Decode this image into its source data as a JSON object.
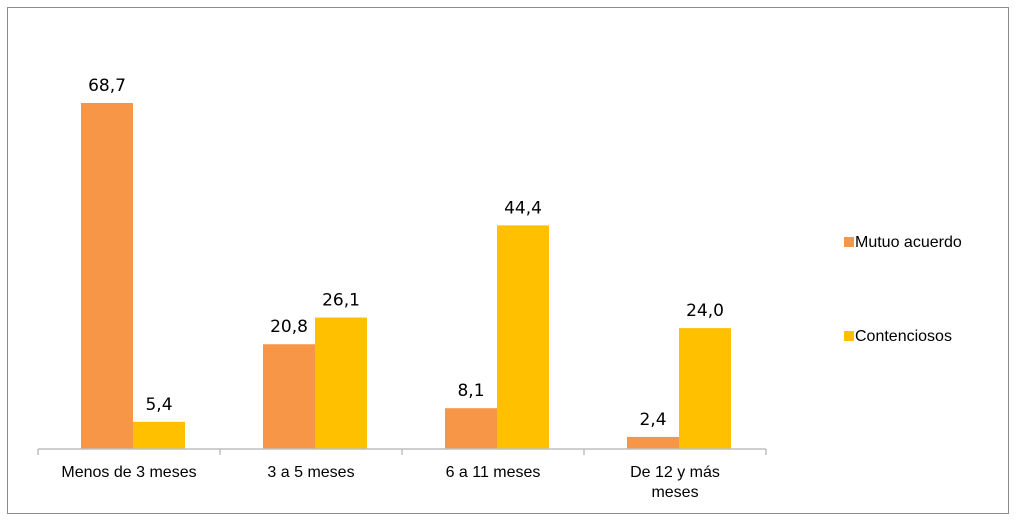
{
  "chart_data": {
    "type": "bar",
    "title": "",
    "xlabel": "",
    "ylabel": "",
    "categories": [
      "Menos de 3 meses",
      "3 a 5 meses",
      "6 a 11 meses",
      "De 12 y más meses"
    ],
    "series": [
      {
        "name": "Mutuo acuerdo",
        "color": "#f79646",
        "values": [
          68.7,
          20.8,
          8.1,
          2.4
        ],
        "labels": [
          "68,7",
          "20,8",
          "8,1",
          "2,4"
        ]
      },
      {
        "name": "Contenciosos",
        "color": "#ffc000",
        "values": [
          5.4,
          26.1,
          44.4,
          24.0
        ],
        "labels": [
          "5,4",
          "26,1",
          "44,4",
          "24,0"
        ]
      }
    ],
    "ylim": [
      0,
      80
    ],
    "grid": false,
    "legend": "right",
    "axis_color": "#bfbfbf"
  }
}
